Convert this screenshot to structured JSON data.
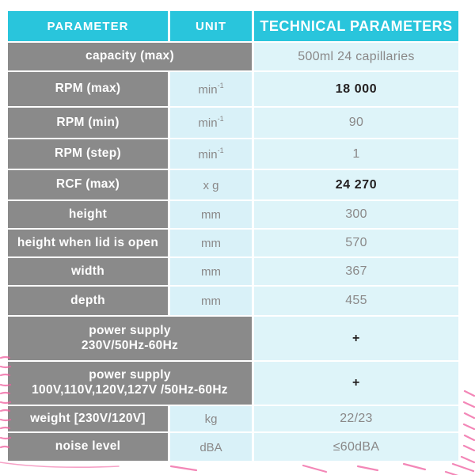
{
  "colors": {
    "header_cyan": "#29c5dc",
    "row_gray": "#8a8a8a",
    "cell_blue": "#def4f9",
    "unit_blue": "#d9f1f8",
    "text_gray": "#8a8888",
    "text_dark": "#231f20",
    "pink_accent": "#ef5f9f"
  },
  "table": {
    "headers": [
      {
        "label": "PARAMETER"
      },
      {
        "label": "UNIT"
      },
      {
        "label": "TECHNICAL PARAMETERS"
      }
    ],
    "rows": [
      {
        "param": "capacity  (max)",
        "colspan": true,
        "value": "500ml 24 capillaries",
        "bold": false
      },
      {
        "param": "RPM (max)",
        "unit": "min",
        "unit_sup": "-1",
        "value": "18 000",
        "bold": true
      },
      {
        "param": "RPM (min)",
        "unit": "min",
        "unit_sup": "-1",
        "value": "90",
        "bold": false
      },
      {
        "param": "RPM (step)",
        "unit": "min",
        "unit_sup": "-1",
        "value": "1",
        "bold": false
      },
      {
        "param": "RCF (max)",
        "unit": "x g",
        "value": "24 270",
        "bold": true
      },
      {
        "param": "height",
        "unit": "mm",
        "value": "300",
        "bold": false
      },
      {
        "param": "height when lid is open",
        "unit": "mm",
        "value": "570",
        "bold": false
      },
      {
        "param": "width",
        "unit": "mm",
        "value": "367",
        "bold": false
      },
      {
        "param": "depth",
        "unit": "mm",
        "value": "455",
        "bold": false
      },
      {
        "param": "power supply\n230V/50Hz-60Hz",
        "colspan": true,
        "value": "+",
        "bold": true
      },
      {
        "param": "power supply\n100V,110V,120V,127V /50Hz-60Hz",
        "colspan": true,
        "value": "+",
        "bold": true
      },
      {
        "param": "weight  [230V/120V]",
        "unit": "kg",
        "value": "22/23",
        "bold": false
      },
      {
        "param": "noise level",
        "unit": "dBA",
        "value": "≤60dBA",
        "bold": false
      }
    ]
  }
}
